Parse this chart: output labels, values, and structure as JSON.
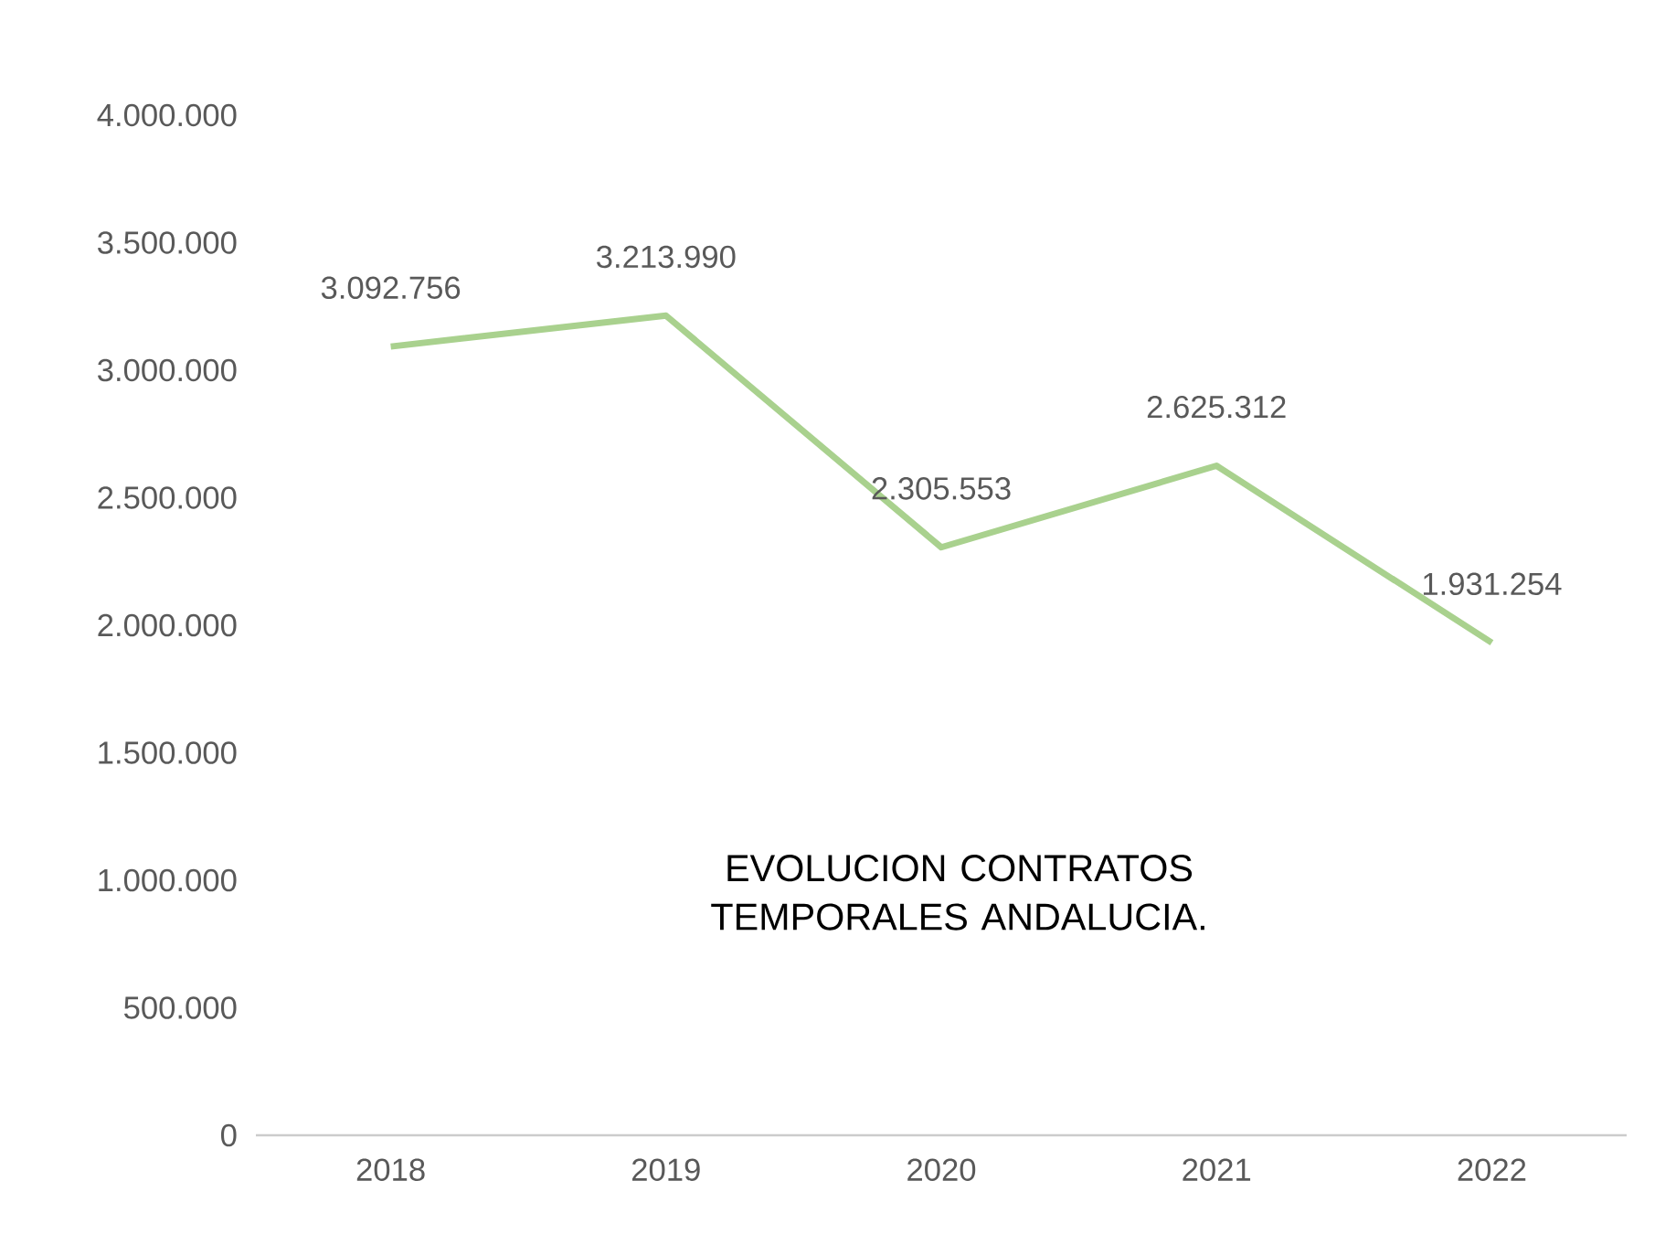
{
  "chart_data": {
    "type": "line",
    "title": "EVOLUCION CONTRATOS TEMPORALES ANDALUCIA.",
    "categories": [
      "2018",
      "2019",
      "2020",
      "2021",
      "2022"
    ],
    "values": [
      3092756,
      3213990,
      2305553,
      2625312,
      1931254
    ],
    "value_labels": [
      "3.092.756",
      "3.213.990",
      "2.305.553",
      "2.625.312",
      "1.931.254"
    ],
    "color": "#a9d18e",
    "ylim": [
      0,
      4000000
    ],
    "yticks": [
      {
        "value": 0,
        "label": "0"
      },
      {
        "value": 500000,
        "label": "500.000"
      },
      {
        "value": 1000000,
        "label": "1.000.000"
      },
      {
        "value": 1500000,
        "label": "1.500.000"
      },
      {
        "value": 2000000,
        "label": "2.000.000"
      },
      {
        "value": 2500000,
        "label": "2.500.000"
      },
      {
        "value": 3000000,
        "label": "3.000.000"
      },
      {
        "value": 3500000,
        "label": "3.500.000"
      },
      {
        "value": 4000000,
        "label": "4.000.000"
      }
    ],
    "grid": false,
    "marker": "none",
    "line_style": "solid"
  }
}
